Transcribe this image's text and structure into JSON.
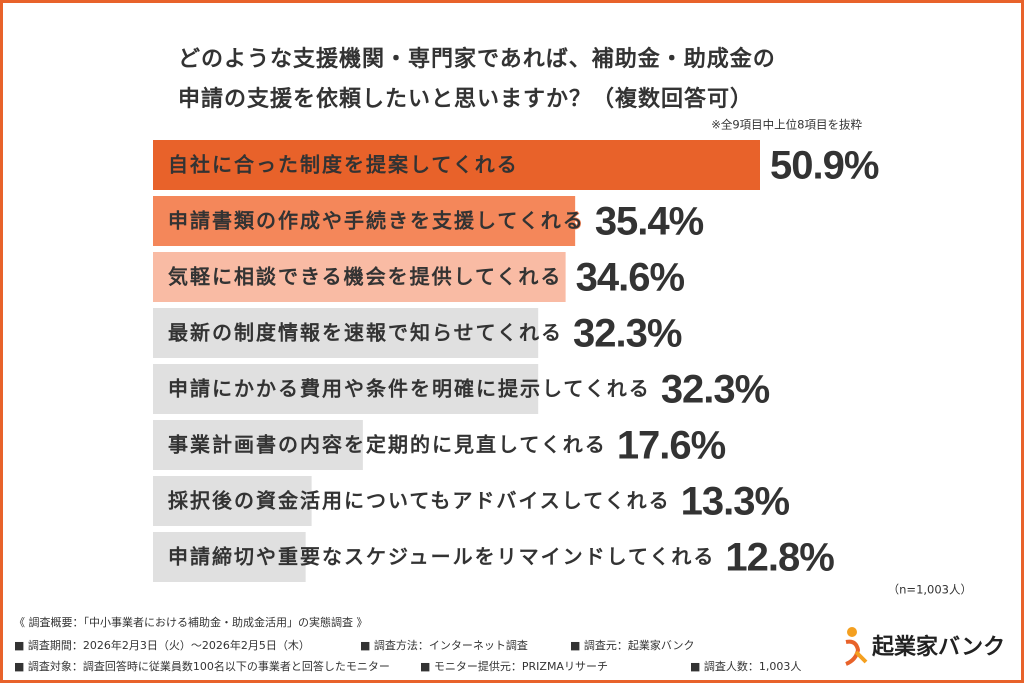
{
  "chart_data": {
    "type": "bar",
    "orientation": "horizontal",
    "title": [
      "どのような支援機関・専門家であれば、補助金・助成金の",
      "申請の支援を依頼したいと思いますか？（複数回答可）"
    ],
    "note": "※全9項目中上位8項目を抜粋",
    "sample_size": "（n=1,003人）",
    "categories": [
      "自社に合った制度を提案してくれる",
      "申請書類の作成や手続きを支援してくれる",
      "気軽に相談できる機会を提供してくれる",
      "最新の制度情報を速報で知らせてくれる",
      "申請にかかる費用や条件を明確に提示してくれる",
      "事業計画書の内容を定期的に見直してくれる",
      "採択後の資金活用についてもアドバイスしてくれる",
      "申請締切や重要なスケジュールをリマインドしてくれる"
    ],
    "values": [
      50.9,
      35.4,
      34.6,
      32.3,
      32.3,
      17.6,
      13.3,
      12.8
    ],
    "value_labels": [
      "50.9%",
      "35.4%",
      "34.6%",
      "32.3%",
      "32.3%",
      "17.6%",
      "13.3%",
      "12.8%"
    ],
    "colors": [
      "#e8622a",
      "#f4875a",
      "#f9bba4",
      "#e0e0e0",
      "#e0e0e0",
      "#e0e0e0",
      "#e0e0e0",
      "#e0e0e0"
    ],
    "text_colors": [
      "#ffffff",
      "#ffffff",
      "#ffffff",
      "#444444",
      "#444444",
      "#444444",
      "#444444",
      "#444444"
    ],
    "value_label_colors": [
      "#e8622a",
      "#f4875a",
      "#f9bba4",
      "#555555",
      "#555555",
      "#555555",
      "#555555",
      "#555555"
    ]
  },
  "footer": {
    "heading": "《 調査概要：「中小事業者における補助金・助成金活用」の実態調査 》",
    "period": "■ 調査期間：2026年2月3日（火）～2026年2月5日（木）",
    "method": "■ 調査方法：インターネット調査",
    "source": "■ 調査元：起業家バンク",
    "target": "■ 調査対象：調査回答時に従業員数100名以下の事業者と回答したモニター",
    "panel": "■ モニター提供元：PRIZMAリサーチ",
    "count": "■ 調査人数：1,003人"
  },
  "logo": "起業家バンク"
}
